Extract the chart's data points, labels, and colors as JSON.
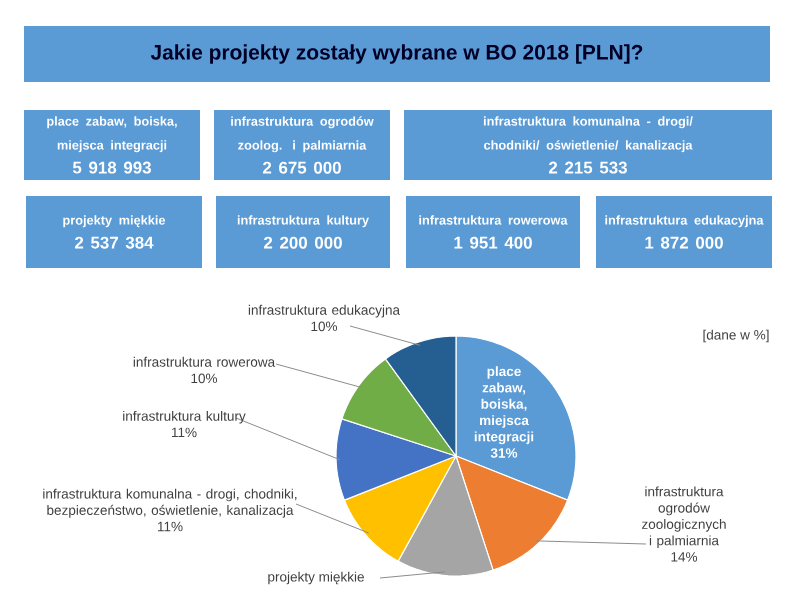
{
  "chart_data": [
    {
      "type": "other",
      "title": "Jakie projekty zostały wybrane w BO 2018 [PLN]?",
      "color": "#5b9bd5",
      "categories": [
        "place zabaw, boiska, miejsca integracji",
        "infrastruktura ogrodów zoolog. i palmiarnia",
        "infrastruktura komunalna - drogi/ chodniki/ oświetlenie/ kanalizacja",
        "projekty miękkie",
        "infrastruktura kultury",
        "infrastruktura rowerowa",
        "infrastruktura edukacyjna"
      ],
      "value_labels": [
        "5 918 993",
        "2 675 000",
        "2 215 533",
        "2 537 384",
        "2 200 000",
        "1 951 400",
        "1 872 000"
      ]
    },
    {
      "type": "pie",
      "categories": [
        "place zabaw, boiska, miejsca integracji",
        "infrastruktura ogrodów zoologicznych i palmiarnia",
        "projekty miękkie",
        "infrastruktura komunalna - drogi, chodniki, bezpieczeństwo, oświetlenie, kanalizacja",
        "infrastruktura kultury",
        "infrastruktura rowerowa",
        "infrastruktura edukacyjna"
      ],
      "values": [
        31,
        14,
        13,
        11,
        11,
        10,
        10
      ],
      "colors": [
        "#5b9bd5",
        "#ed7d31",
        "#a5a5a5",
        "#ffc000",
        "#4472c4",
        "#70ad47",
        "#255e91"
      ],
      "value_labels": [
        "31%",
        "14%",
        null,
        "11%",
        "11%",
        "10%",
        "10%"
      ],
      "annotations": [
        "[dane w %]"
      ]
    }
  ]
}
